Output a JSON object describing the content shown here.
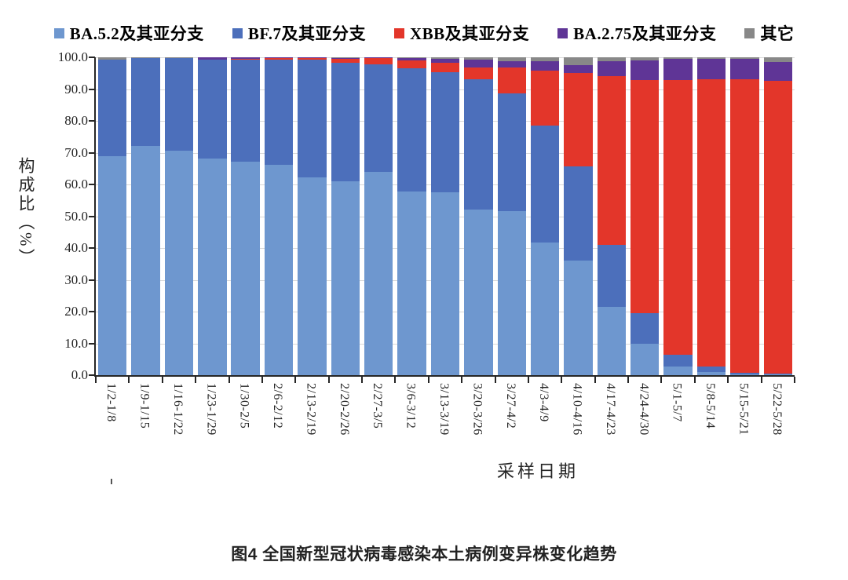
{
  "caption": "图4 全国新型冠状病毒感染本土病例变异株变化趋势",
  "chart_data": {
    "type": "bar",
    "stacked": true,
    "grid": true,
    "legend_position": "top",
    "xlabel": "采样日期",
    "ylabel": "构成比（%）",
    "ylim": [
      0,
      100
    ],
    "ytick_step": 10,
    "ytick_labels": [
      "0.0",
      "10.0",
      "20.0",
      "30.0",
      "40.0",
      "50.0",
      "60.0",
      "70.0",
      "80.0",
      "90.0",
      "100.0"
    ],
    "categories": [
      "1/2-1/8",
      "1/9-1/15",
      "1/16-1/22",
      "1/23-1/29",
      "1/30-2/5",
      "2/6-2/12",
      "2/13-2/19",
      "2/20-2/26",
      "2/27-3/5",
      "3/6-3/12",
      "3/13-3/19",
      "3/20-3/26",
      "3/27-4/2",
      "4/3-4/9",
      "4/10-4/16",
      "4/17-4/23",
      "4/24-4/30",
      "5/1-5/7",
      "5/8-5/14",
      "5/15-5/21",
      "5/22-5/28"
    ],
    "series": [
      {
        "name": "BA.5.2及其亚分支",
        "color": "#6E97CF",
        "values": [
          69.0,
          72.0,
          70.5,
          68.2,
          67.2,
          66.1,
          62.2,
          61.0,
          64.0,
          57.8,
          57.6,
          52.1,
          51.7,
          41.8,
          36.0,
          21.5,
          10.0,
          2.7,
          1.0,
          0.3,
          0.2
        ]
      },
      {
        "name": "BF.7及其亚分支",
        "color": "#4C6FBB",
        "values": [
          30.2,
          27.8,
          29.3,
          31.0,
          32.1,
          33.1,
          37.0,
          37.2,
          33.8,
          38.7,
          37.7,
          41.1,
          37.0,
          36.7,
          29.7,
          19.4,
          9.5,
          3.8,
          1.7,
          0.4,
          0.3
        ]
      },
      {
        "name": "XBB及其亚分支",
        "color": "#E3362A",
        "values": [
          0.0,
          0.0,
          0.0,
          0.1,
          0.1,
          0.6,
          0.6,
          1.4,
          2.0,
          2.5,
          2.9,
          3.7,
          8.0,
          17.3,
          29.3,
          53.2,
          73.4,
          86.3,
          90.3,
          92.3,
          92.0
        ]
      },
      {
        "name": "BA.2.75及其亚分支",
        "color": "#5F3596",
        "values": [
          0.0,
          0.0,
          0.0,
          0.6,
          0.5,
          0.1,
          0.1,
          0.2,
          0.1,
          0.8,
          1.2,
          2.4,
          2.0,
          2.9,
          2.5,
          4.7,
          6.1,
          6.6,
          6.6,
          6.6,
          6.1
        ]
      },
      {
        "name": "其它",
        "color": "#888888",
        "values": [
          0.8,
          0.2,
          0.2,
          0.1,
          0.1,
          0.1,
          0.1,
          0.2,
          0.1,
          0.2,
          0.6,
          0.7,
          1.3,
          1.3,
          2.5,
          1.2,
          1.0,
          0.6,
          0.4,
          0.4,
          1.4
        ]
      }
    ]
  },
  "style": {
    "grid_color": "#d9d9d9",
    "axis_color": "#262626"
  }
}
